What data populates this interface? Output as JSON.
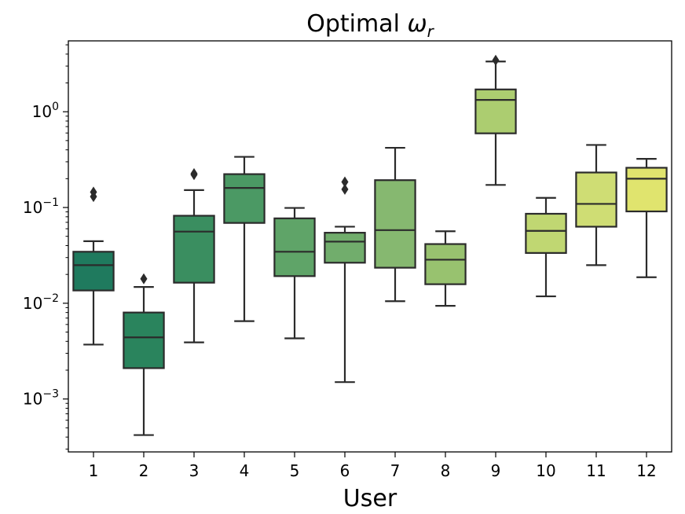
{
  "chart_data": {
    "type": "boxplot",
    "title": "Optimal ω_r",
    "title_base": "Optimal ",
    "title_symbol": "ω",
    "title_subscript": "r",
    "xlabel": "User",
    "ylabel": "",
    "yscale": "log",
    "ylim": [
      0.00028,
      5.5
    ],
    "categories": [
      "1",
      "2",
      "3",
      "4",
      "5",
      "6",
      "7",
      "8",
      "9",
      "10",
      "11",
      "12"
    ],
    "y_ticks": [
      {
        "value": 0.001,
        "base": "10",
        "exp": "−3"
      },
      {
        "value": 0.01,
        "base": "10",
        "exp": "−2"
      },
      {
        "value": 0.1,
        "base": "10",
        "exp": "−1"
      },
      {
        "value": 1,
        "base": "10",
        "exp": "0"
      }
    ],
    "boxes": [
      {
        "user": "1",
        "whislo": 0.0037,
        "q1": 0.0136,
        "med": 0.025,
        "q3": 0.0345,
        "whishi": 0.0445,
        "fliers": [
          0.13,
          0.145
        ],
        "color": "#1f7a5e"
      },
      {
        "user": "2",
        "whislo": 0.00042,
        "q1": 0.0021,
        "med": 0.0044,
        "q3": 0.008,
        "whishi": 0.0148,
        "fliers": [
          0.018
        ],
        "color": "#2a845d"
      },
      {
        "user": "3",
        "whislo": 0.0039,
        "q1": 0.0164,
        "med": 0.056,
        "q3": 0.082,
        "whishi": 0.152,
        "fliers": [
          0.22,
          0.226
        ],
        "color": "#3a8e60"
      },
      {
        "user": "4",
        "whislo": 0.0065,
        "q1": 0.069,
        "med": 0.16,
        "q3": 0.223,
        "whishi": 0.338,
        "fliers": [],
        "color": "#4b9964"
      },
      {
        "user": "5",
        "whislo": 0.0043,
        "q1": 0.0192,
        "med": 0.0345,
        "q3": 0.077,
        "whishi": 0.099,
        "fliers": [],
        "color": "#5fa468"
      },
      {
        "user": "6",
        "whislo": 0.0015,
        "q1": 0.0265,
        "med": 0.044,
        "q3": 0.0545,
        "whishi": 0.063,
        "fliers": [
          0.155,
          0.185
        ],
        "color": "#71ad6c"
      },
      {
        "user": "7",
        "whislo": 0.0105,
        "q1": 0.0235,
        "med": 0.058,
        "q3": 0.193,
        "whishi": 0.42,
        "fliers": [],
        "color": "#86b870"
      },
      {
        "user": "8",
        "whislo": 0.0094,
        "q1": 0.0158,
        "med": 0.0285,
        "q3": 0.0415,
        "whishi": 0.0565,
        "fliers": [],
        "color": "#98c26f"
      },
      {
        "user": "9",
        "whislo": 0.172,
        "q1": 0.595,
        "med": 1.33,
        "q3": 1.71,
        "whishi": 3.35,
        "fliers": [
          3.45
        ],
        "color": "#accd70"
      },
      {
        "user": "10",
        "whislo": 0.0118,
        "q1": 0.0335,
        "med": 0.057,
        "q3": 0.086,
        "whishi": 0.126,
        "fliers": [],
        "color": "#c0d772"
      },
      {
        "user": "11",
        "whislo": 0.025,
        "q1": 0.063,
        "med": 0.109,
        "q3": 0.232,
        "whishi": 0.45,
        "fliers": [],
        "color": "#cfdd74"
      },
      {
        "user": "12",
        "whislo": 0.0187,
        "q1": 0.091,
        "med": 0.2,
        "q3": 0.26,
        "whishi": 0.322,
        "fliers": [],
        "color": "#e0e46e"
      }
    ]
  }
}
